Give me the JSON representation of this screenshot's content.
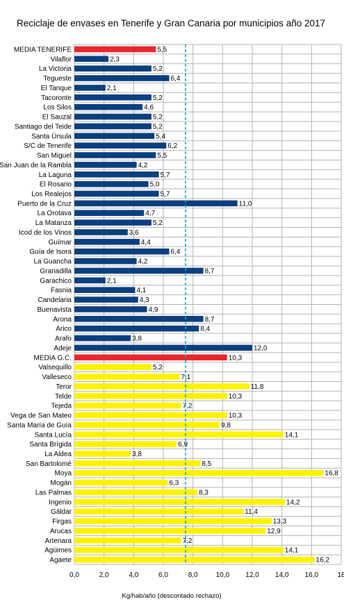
{
  "chart_data": {
    "type": "bar",
    "orientation": "horizontal",
    "title": "Reciclaje de envases  en Tenerife y Gran Canaria por municipios año 2017",
    "xlabel": "Kg/hab/año (descontado rechazo)",
    "ylabel": "",
    "xlim": [
      0,
      18
    ],
    "x_ticks": [
      "0,0",
      "2,0",
      "4,0",
      "6,0",
      "8,0",
      "10,0",
      "12,0",
      "14,0",
      "16,0",
      "18"
    ],
    "grid": true,
    "legend": "none",
    "reference_line": {
      "value": 7.5,
      "style": "dashed",
      "color": "#1aa3c9"
    },
    "colors": {
      "media": "#e8262c",
      "tenerife": "#0b3f7f",
      "gran_canaria": "#fff200"
    },
    "categories": [
      "MEDIA TENERIFE",
      "Vilaflor",
      "La Victoria",
      "Tegueste",
      "El Tanque",
      "Tacoronte",
      "Los Silos",
      "El Sauzal",
      "Santiago del Teide",
      "Santa Úrsula",
      "S/C de Tenerife",
      "San Miguel",
      "San Juan de la Rambla",
      "La Laguna",
      "El Rosario",
      "Los Realejos",
      "Puerto de la Cruz",
      "La Orotava",
      "La Matanza",
      "Icod de los Vinos",
      "Guímar",
      "Guía de Isora",
      "La Guancha",
      "Granadilla",
      "Garachico",
      "Fasnia",
      "Candelaria",
      "Buenavista",
      "Arona",
      "Arico",
      "Arafo",
      "Adeje",
      "MEDIA G.C.",
      "Valsequillo",
      "Valleseco",
      "Teror",
      "Telde",
      "Tejeda",
      "Vega de San Mateo",
      "Santa María de Guía",
      "Santa Lucía",
      "Santa Brígida",
      "La Aldea",
      "San Bartolomé",
      "Moya",
      "Mogán",
      "Las Palmas",
      "Ingenio",
      "Gáldar",
      "Firgas",
      "Arucas",
      "Artenara",
      "Agüimes",
      "Agaete"
    ],
    "values": [
      5.5,
      2.3,
      5.2,
      6.4,
      2.1,
      5.2,
      4.6,
      5.2,
      5.2,
      5.4,
      6.2,
      5.5,
      4.2,
      5.7,
      5.0,
      5.7,
      11.0,
      4.7,
      5.2,
      3.6,
      4.4,
      6.4,
      4.2,
      8.7,
      2.1,
      4.1,
      4.3,
      4.9,
      8.7,
      8.4,
      3.8,
      12.0,
      10.3,
      5.2,
      7.1,
      11.8,
      10.3,
      7.2,
      10.3,
      9.8,
      14.1,
      6.9,
      3.8,
      8.5,
      16.8,
      6.3,
      8.3,
      14.2,
      11.4,
      13.3,
      12.9,
      7.2,
      14.1,
      16.2
    ],
    "value_labels": [
      "5,5",
      "2,3",
      "5,2",
      "6,4",
      "2,1",
      "5,2",
      "4,6",
      "5,2",
      "5,2",
      "5,4",
      "6,2",
      "5,5",
      "4,2",
      "5,7",
      "5,0",
      "5,7",
      "11,0",
      "4,7",
      "5,2",
      "3,6",
      "4,4",
      "6,4",
      "4,2",
      "8,7",
      "2,1",
      "4,1",
      "4,3",
      "4,9",
      "8,7",
      "8,4",
      "3,8",
      "12,0",
      "10,3",
      "5,2",
      "7,1",
      "11,8",
      "10,3",
      "7,2",
      "10,3",
      "9,8",
      "14,1",
      "6,9",
      "3,8",
      "8,5",
      "16,8",
      "6,3",
      "8,3",
      "14,2",
      "11,4",
      "13,3",
      "12,9",
      "7,2",
      "14,1",
      "16,2"
    ],
    "groups": [
      "media",
      "tenerife",
      "tenerife",
      "tenerife",
      "tenerife",
      "tenerife",
      "tenerife",
      "tenerife",
      "tenerife",
      "tenerife",
      "tenerife",
      "tenerife",
      "tenerife",
      "tenerife",
      "tenerife",
      "tenerife",
      "tenerife",
      "tenerife",
      "tenerife",
      "tenerife",
      "tenerife",
      "tenerife",
      "tenerife",
      "tenerife",
      "tenerife",
      "tenerife",
      "tenerife",
      "tenerife",
      "tenerife",
      "tenerife",
      "tenerife",
      "tenerife",
      "media",
      "gran_canaria",
      "gran_canaria",
      "gran_canaria",
      "gran_canaria",
      "gran_canaria",
      "gran_canaria",
      "gran_canaria",
      "gran_canaria",
      "gran_canaria",
      "gran_canaria",
      "gran_canaria",
      "gran_canaria",
      "gran_canaria",
      "gran_canaria",
      "gran_canaria",
      "gran_canaria",
      "gran_canaria",
      "gran_canaria",
      "gran_canaria",
      "gran_canaria",
      "gran_canaria"
    ]
  }
}
